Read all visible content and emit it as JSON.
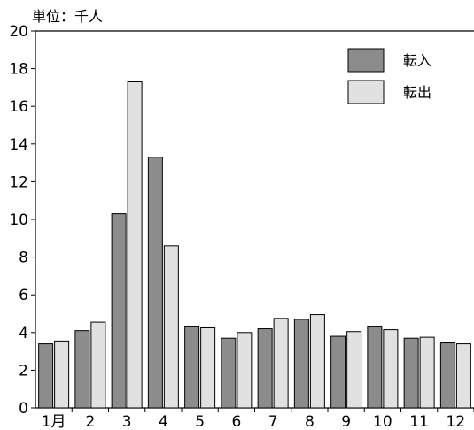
{
  "chart_data": {
    "type": "bar",
    "unit_label": "単位：千人",
    "categories": [
      "1月",
      "2",
      "3",
      "4",
      "5",
      "6",
      "7",
      "8",
      "9",
      "10",
      "11",
      "12"
    ],
    "series": [
      {
        "name": "転入",
        "color": "#8c8c8c",
        "values": [
          3.4,
          4.1,
          10.3,
          13.3,
          4.3,
          3.7,
          4.2,
          4.7,
          3.8,
          4.3,
          3.7,
          3.45
        ]
      },
      {
        "name": "転出",
        "color": "#e1e1e1",
        "values": [
          3.55,
          4.55,
          17.3,
          8.6,
          4.25,
          4.0,
          4.75,
          4.95,
          4.05,
          4.15,
          3.75,
          3.4
        ]
      }
    ],
    "ylim": [
      0,
      20
    ],
    "yticks": [
      0,
      2,
      4,
      6,
      8,
      10,
      12,
      14,
      16,
      18,
      20
    ],
    "grid": false,
    "legend_position": "top-right"
  }
}
